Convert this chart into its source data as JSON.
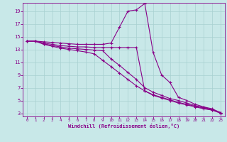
{
  "xlabel": "Windchill (Refroidissement éolien,°C)",
  "background_color": "#c8e8e8",
  "line_color": "#880088",
  "grid_color": "#a8d0d0",
  "x_ticks": [
    0,
    1,
    2,
    3,
    4,
    5,
    6,
    7,
    8,
    9,
    10,
    11,
    12,
    13,
    14,
    15,
    16,
    17,
    18,
    19,
    20,
    21,
    22,
    23
  ],
  "y_ticks": [
    3,
    5,
    7,
    9,
    11,
    13,
    15,
    17,
    19
  ],
  "xlim": [
    -0.5,
    23.5
  ],
  "ylim": [
    2.5,
    20.3
  ],
  "curves": [
    {
      "x": [
        0,
        1,
        2,
        3,
        4,
        5,
        6,
        7,
        8,
        9,
        10,
        11,
        12,
        13,
        14,
        15,
        16,
        17,
        18,
        19,
        20,
        21,
        22,
        23
      ],
      "y": [
        14.3,
        14.3,
        14.2,
        14.1,
        14.0,
        13.9,
        13.8,
        13.8,
        13.8,
        13.8,
        14.0,
        16.5,
        19.0,
        19.2,
        20.2,
        12.5,
        9.0,
        7.8,
        5.5,
        5.0,
        4.4,
        4.0,
        3.7,
        3.1
      ]
    },
    {
      "x": [
        0,
        1,
        2,
        3,
        4,
        5,
        6,
        7,
        8,
        9,
        10,
        11,
        12,
        13,
        14,
        15,
        16,
        17,
        18,
        19,
        20,
        21,
        22,
        23
      ],
      "y": [
        14.3,
        14.3,
        14.0,
        13.8,
        13.6,
        13.5,
        13.4,
        13.4,
        13.3,
        13.3,
        13.3,
        13.3,
        13.3,
        13.3,
        6.5,
        5.8,
        5.4,
        5.0,
        4.6,
        4.3,
        4.0,
        3.7,
        3.5,
        3.1
      ]
    },
    {
      "x": [
        0,
        1,
        2,
        3,
        4,
        5,
        6,
        7,
        8,
        9,
        10,
        11,
        12,
        13,
        14,
        15,
        16,
        17,
        18,
        19,
        20,
        21,
        22,
        23
      ],
      "y": [
        14.3,
        14.3,
        13.9,
        13.6,
        13.4,
        13.2,
        13.1,
        13.0,
        12.9,
        12.8,
        11.5,
        10.5,
        9.4,
        8.3,
        7.0,
        6.3,
        5.8,
        5.3,
        5.0,
        4.6,
        4.2,
        3.9,
        3.6,
        3.1
      ]
    },
    {
      "x": [
        0,
        1,
        2,
        3,
        4,
        5,
        6,
        7,
        8,
        9,
        10,
        11,
        12,
        13,
        14,
        15,
        16,
        17,
        18,
        19,
        20,
        21,
        22,
        23
      ],
      "y": [
        14.3,
        14.3,
        13.8,
        13.5,
        13.2,
        13.0,
        12.8,
        12.6,
        12.3,
        11.3,
        10.3,
        9.3,
        8.3,
        7.3,
        6.5,
        5.9,
        5.5,
        5.1,
        4.7,
        4.4,
        4.1,
        3.8,
        3.5,
        3.0
      ]
    }
  ]
}
